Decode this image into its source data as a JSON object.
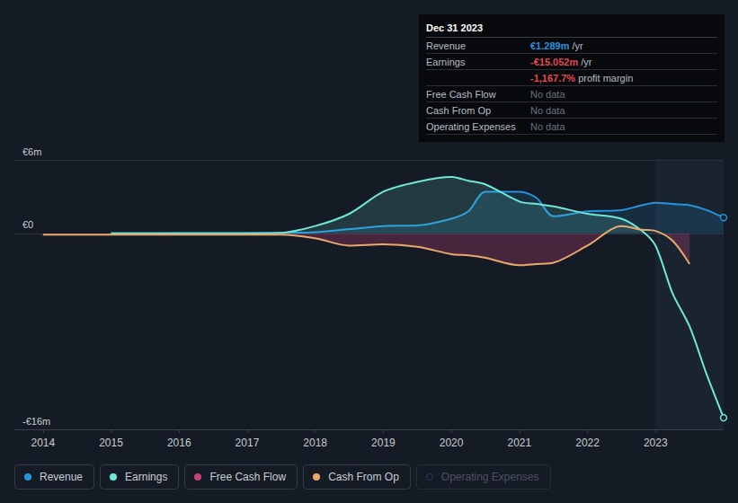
{
  "chart_data": {
    "type": "line",
    "x": [
      2014,
      2015,
      2016,
      2017,
      2017.5,
      2018,
      2018.5,
      2019,
      2019.5,
      2020,
      2020.25,
      2020.5,
      2021,
      2021.25,
      2021.5,
      2022,
      2022.5,
      2022.8,
      2023,
      2023.25,
      2023.5,
      2023.75,
      2024
    ],
    "xlim": [
      2013.58,
      2024
    ],
    "xticks": [
      2014,
      2015,
      2016,
      2017,
      2018,
      2019,
      2020,
      2021,
      2022,
      2023
    ],
    "ylim": [
      -16,
      6
    ],
    "yticks": [
      {
        "value": -16,
        "label": "-€16m"
      },
      {
        "value": 0,
        "label": "€0"
      },
      {
        "value": 6,
        "label": "€6m"
      }
    ],
    "grid": true,
    "legend": "bottom",
    "series": [
      {
        "name": "Revenue",
        "color": "#2394df",
        "type": "area",
        "marker": "circle",
        "values": [
          null,
          0,
          0.02,
          0.03,
          0.05,
          0.1,
          0.35,
          0.6,
          0.65,
          1.2,
          1.8,
          3.4,
          3.4,
          2.9,
          1.4,
          1.8,
          1.9,
          2.3,
          2.5,
          2.4,
          2.3,
          1.9,
          1.289
        ]
      },
      {
        "name": "Earnings",
        "color": "#6ee8d5",
        "type": "area",
        "marker": "circle",
        "values": [
          null,
          0,
          0,
          0,
          0.05,
          0.6,
          1.6,
          3.4,
          4.2,
          4.6,
          4.3,
          4.0,
          2.6,
          2.4,
          2.2,
          1.6,
          1.2,
          0.2,
          -1.0,
          -4.9,
          -7.6,
          -11.5,
          -15.052
        ]
      },
      {
        "name": "Free Cash Flow",
        "color": "#c8407a",
        "type": "area",
        "values": [
          -0.1,
          -0.1,
          -0.1,
          -0.1,
          -0.1,
          -0.4,
          -1.0,
          -0.9,
          -1.1,
          -1.7,
          -1.8,
          -2.0,
          -2.6,
          -2.5,
          -2.4,
          -1.0,
          0.6,
          0.3,
          0.2,
          -0.6,
          -2.5,
          null,
          null
        ]
      },
      {
        "name": "Cash From Op",
        "color": "#e9a96a",
        "type": "line",
        "values": [
          -0.1,
          -0.1,
          -0.1,
          -0.1,
          -0.1,
          -0.4,
          -1.0,
          -0.9,
          -1.1,
          -1.7,
          -1.8,
          -2.0,
          -2.6,
          -2.5,
          -2.4,
          -1.0,
          0.6,
          0.3,
          0.2,
          -0.6,
          -2.5,
          null,
          null
        ]
      },
      {
        "name": "Operating Expenses",
        "color": "#2d3470",
        "type": "line",
        "values": [
          null,
          null,
          null,
          null,
          null,
          null,
          null,
          null,
          null,
          null,
          null,
          null,
          null,
          null,
          null,
          null,
          null,
          null,
          null,
          null,
          null,
          null,
          null
        ]
      }
    ],
    "annotations": {
      "date": "Dec 31 2023",
      "rows": [
        {
          "label": "Revenue",
          "value": "€1.289m",
          "unit": "/yr"
        },
        {
          "label": "Earnings",
          "value": "-€15.052m",
          "unit": "/yr",
          "extra": {
            "value": "-1,167.7%",
            "unit": "profit margin"
          }
        },
        {
          "label": "Free Cash Flow",
          "value": "No data"
        },
        {
          "label": "Cash From Op",
          "value": "No data"
        },
        {
          "label": "Operating Expenses",
          "value": "No data"
        }
      ]
    }
  }
}
